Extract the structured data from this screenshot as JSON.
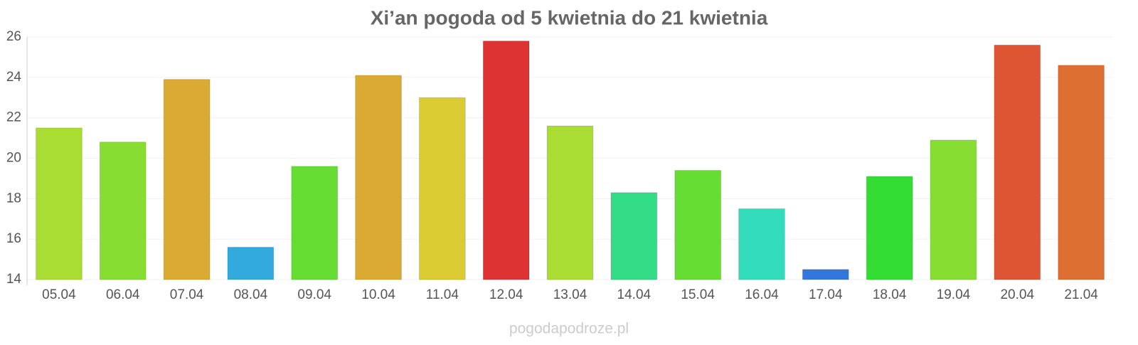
{
  "chart_data": {
    "type": "bar",
    "title": "Xi’an pogoda od 5 kwietnia do 21 kwietnia",
    "categories": [
      "05.04",
      "06.04",
      "07.04",
      "08.04",
      "09.04",
      "10.04",
      "11.04",
      "12.04",
      "13.04",
      "14.04",
      "15.04",
      "16.04",
      "17.04",
      "18.04",
      "19.04",
      "20.04",
      "21.04"
    ],
    "values": [
      21.5,
      20.8,
      23.9,
      15.6,
      19.6,
      24.1,
      23.0,
      25.8,
      21.6,
      18.3,
      19.4,
      17.5,
      14.5,
      19.1,
      20.9,
      25.6,
      24.6
    ],
    "colors": [
      "#aadd33",
      "#88dd33",
      "#dbaa33",
      "#33aadd",
      "#66dd33",
      "#dbaa33",
      "#dbcc33",
      "#dd3333",
      "#aadd33",
      "#33dd88",
      "#66dd33",
      "#33ddbb",
      "#3377dd",
      "#33dd33",
      "#88dd33",
      "#dd5533",
      "#dd6f33"
    ],
    "ylim": [
      14,
      26
    ],
    "yticks": [
      14,
      16,
      18,
      20,
      22,
      24,
      26
    ],
    "grid": true,
    "footer": "pogodapodroze.pl"
  }
}
